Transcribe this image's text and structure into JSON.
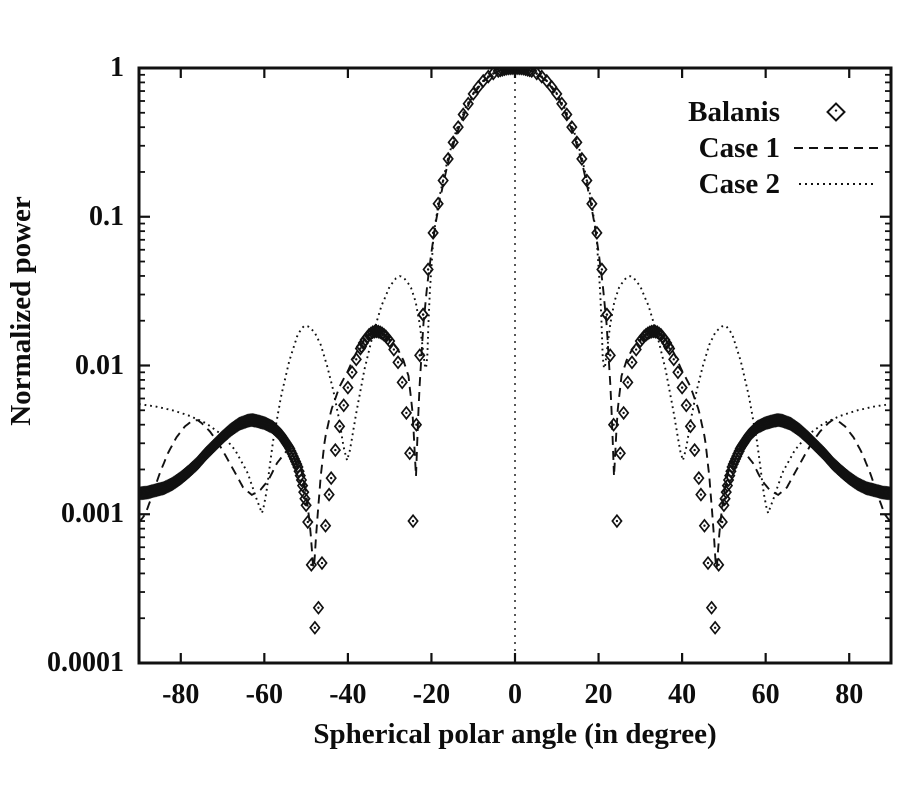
{
  "figure": {
    "background": "#ffffff",
    "ink_color": "#111111",
    "description": "Scanned log-scale antenna radiation pattern comparison plot"
  },
  "chart_data": {
    "type": "line",
    "title": "",
    "xlabel": "Spherical polar angle (in degree)",
    "ylabel": "Normalized power",
    "xlim": [
      -90,
      90
    ],
    "ylim": [
      0.0001,
      1
    ],
    "y_scale": "log",
    "grid": "vertical dotted line at x=0 only",
    "legend_position": "top-right inside plot",
    "x_ticks": [
      {
        "label": "-80",
        "value": -80
      },
      {
        "label": "-60",
        "value": -60
      },
      {
        "label": "-40",
        "value": -40
      },
      {
        "label": "-20",
        "value": -20
      },
      {
        "label": "0",
        "value": 0
      },
      {
        "label": "20",
        "value": 20
      },
      {
        "label": "40",
        "value": 40
      },
      {
        "label": "60",
        "value": 60
      },
      {
        "label": "80",
        "value": 80
      }
    ],
    "y_ticks": [
      {
        "label": "1",
        "value": 1
      },
      {
        "label": "0.1",
        "value": 0.1
      },
      {
        "label": "0.01",
        "value": 0.01
      },
      {
        "label": "0.001",
        "value": 0.001
      },
      {
        "label": "0.0001",
        "value": 0.0001
      }
    ],
    "legend": [
      {
        "label": "Balanis",
        "sample": "diamond-marker"
      },
      {
        "label": "Case 1",
        "sample": "dashed-line"
      },
      {
        "label": "Case 2",
        "sample": "dotted-line"
      }
    ],
    "series": [
      {
        "name": "Balanis",
        "type": "scatter",
        "marker": "open-diamond-with-center-dot",
        "symmetric": true,
        "marker_spacing": [
          [
            0,
            4,
            0.5
          ],
          [
            4,
            22,
            1.2
          ],
          [
            22,
            26,
            0.8
          ],
          [
            26,
            30,
            1.0
          ],
          [
            30,
            37,
            0.45
          ],
          [
            37,
            44.5,
            1.0
          ],
          [
            44.5,
            50,
            0.85
          ],
          [
            50,
            90.01,
            0.28
          ]
        ],
        "half_profile": [
          [
            0,
            1.0
          ],
          [
            2,
            0.99
          ],
          [
            4,
            0.955
          ],
          [
            6,
            0.895
          ],
          [
            8,
            0.8
          ],
          [
            10,
            0.67
          ],
          [
            12,
            0.52
          ],
          [
            14,
            0.375
          ],
          [
            16,
            0.245
          ],
          [
            18,
            0.14
          ],
          [
            19,
            0.1
          ],
          [
            20,
            0.066
          ],
          [
            21,
            0.04
          ],
          [
            22,
            0.022
          ],
          [
            23,
            0.01
          ],
          [
            23.6,
            0.004
          ],
          [
            24,
            0.0015
          ],
          [
            24.4,
            0.0009
          ],
          [
            25,
            0.0022
          ],
          [
            26,
            0.0048
          ],
          [
            27,
            0.0077
          ],
          [
            28,
            0.0105
          ],
          [
            29,
            0.0128
          ],
          [
            30,
            0.0146
          ],
          [
            31,
            0.0158
          ],
          [
            32,
            0.0166
          ],
          [
            33,
            0.017
          ],
          [
            34,
            0.0168
          ],
          [
            35,
            0.016
          ],
          [
            36,
            0.0147
          ],
          [
            37,
            0.013
          ],
          [
            38,
            0.011
          ],
          [
            39,
            0.009
          ],
          [
            40,
            0.0071
          ],
          [
            41,
            0.0054
          ],
          [
            42,
            0.0039
          ],
          [
            43,
            0.0027
          ],
          [
            44,
            0.00175
          ],
          [
            45,
            0.00105
          ],
          [
            46,
            0.00055
          ],
          [
            47,
            0.00025
          ],
          [
            47.6,
            0.00012
          ],
          [
            48.3,
            0.00028
          ],
          [
            49,
            0.0006
          ],
          [
            50,
            0.00115
          ],
          [
            51,
            0.00165
          ],
          [
            52,
            0.0021
          ],
          [
            54,
            0.0028
          ],
          [
            56,
            0.0034
          ],
          [
            58,
            0.00385
          ],
          [
            60,
            0.0041
          ],
          [
            62,
            0.00425
          ],
          [
            63,
            0.0043
          ],
          [
            64,
            0.00425
          ],
          [
            66,
            0.00405
          ],
          [
            68,
            0.0037
          ],
          [
            70,
            0.0033
          ],
          [
            72,
            0.0029
          ],
          [
            74,
            0.00255
          ],
          [
            76,
            0.0022
          ],
          [
            78,
            0.00195
          ],
          [
            80,
            0.00175
          ],
          [
            82,
            0.0016
          ],
          [
            84,
            0.0015
          ],
          [
            86,
            0.00145
          ],
          [
            88,
            0.0014
          ],
          [
            90,
            0.00138
          ]
        ]
      },
      {
        "name": "Case 1",
        "type": "line",
        "dash": [
          9,
          6
        ],
        "symmetric": true,
        "half_profile": [
          [
            0,
            1.0
          ],
          [
            2,
            0.985
          ],
          [
            4,
            0.95
          ],
          [
            6,
            0.885
          ],
          [
            8,
            0.79
          ],
          [
            10,
            0.66
          ],
          [
            12,
            0.5
          ],
          [
            14,
            0.36
          ],
          [
            16,
            0.235
          ],
          [
            18,
            0.13
          ],
          [
            19,
            0.09
          ],
          [
            20,
            0.058
          ],
          [
            21,
            0.035
          ],
          [
            22,
            0.018
          ],
          [
            23,
            0.006
          ],
          [
            23.7,
            0.0018
          ],
          [
            24.5,
            0.0048
          ],
          [
            25.5,
            0.0085
          ],
          [
            26.7,
            0.0108
          ],
          [
            28,
            0.0128
          ],
          [
            30,
            0.015
          ],
          [
            32,
            0.0163
          ],
          [
            33.5,
            0.0168
          ],
          [
            35,
            0.016
          ],
          [
            36,
            0.015
          ],
          [
            38,
            0.0122
          ],
          [
            40,
            0.0092
          ],
          [
            42,
            0.0072
          ],
          [
            44,
            0.005
          ],
          [
            45.5,
            0.0032
          ],
          [
            46.5,
            0.0018
          ],
          [
            47.5,
            0.0008
          ],
          [
            48.2,
            0.0004
          ],
          [
            49,
            0.0008
          ],
          [
            50,
            0.0014
          ],
          [
            51,
            0.0019
          ],
          [
            52.5,
            0.0025
          ],
          [
            53.5,
            0.0028
          ],
          [
            55,
            0.0026
          ],
          [
            57,
            0.0022
          ],
          [
            59,
            0.0017
          ],
          [
            61,
            0.00145
          ],
          [
            63,
            0.00135
          ],
          [
            65,
            0.0015
          ],
          [
            67,
            0.0019
          ],
          [
            69,
            0.0024
          ],
          [
            71,
            0.003
          ],
          [
            73,
            0.0036
          ],
          [
            75,
            0.0041
          ],
          [
            76,
            0.0043
          ],
          [
            77.5,
            0.0042
          ],
          [
            79,
            0.0039
          ],
          [
            81,
            0.0033
          ],
          [
            83,
            0.0026
          ],
          [
            85,
            0.0019
          ],
          [
            87,
            0.0013
          ],
          [
            88.5,
            0.001
          ],
          [
            90,
            0.00088
          ]
        ]
      },
      {
        "name": "Case 2",
        "type": "line",
        "dash": [
          1.8,
          3.8
        ],
        "symmetric": true,
        "half_profile": [
          [
            0,
            1.0
          ],
          [
            2,
            0.985
          ],
          [
            4,
            0.955
          ],
          [
            6,
            0.89
          ],
          [
            8,
            0.805
          ],
          [
            10,
            0.675
          ],
          [
            12,
            0.53
          ],
          [
            14,
            0.385
          ],
          [
            16,
            0.25
          ],
          [
            18,
            0.14
          ],
          [
            19.5,
            0.075
          ],
          [
            20.5,
            0.028
          ],
          [
            21,
            0.0115
          ],
          [
            21.4,
            0.009
          ],
          [
            22,
            0.0125
          ],
          [
            22.8,
            0.019
          ],
          [
            23.8,
            0.027
          ],
          [
            25,
            0.034
          ],
          [
            26.5,
            0.0385
          ],
          [
            27.5,
            0.04
          ],
          [
            28.5,
            0.0385
          ],
          [
            30,
            0.034
          ],
          [
            32,
            0.025
          ],
          [
            34,
            0.0162
          ],
          [
            36,
            0.0095
          ],
          [
            38,
            0.0048
          ],
          [
            39.5,
            0.0027
          ],
          [
            40.2,
            0.0023
          ],
          [
            41,
            0.0028
          ],
          [
            42,
            0.0042
          ],
          [
            43.5,
            0.0068
          ],
          [
            45,
            0.01
          ],
          [
            46.5,
            0.0138
          ],
          [
            48,
            0.0168
          ],
          [
            49.5,
            0.0183
          ],
          [
            50.5,
            0.0185
          ],
          [
            52,
            0.0162
          ],
          [
            54,
            0.0108
          ],
          [
            56,
            0.0062
          ],
          [
            58,
            0.003
          ],
          [
            59.5,
            0.0014
          ],
          [
            60.5,
            0.001
          ],
          [
            62,
            0.0013
          ],
          [
            64,
            0.0019
          ],
          [
            67,
            0.0027
          ],
          [
            70,
            0.0034
          ],
          [
            74,
            0.0041
          ],
          [
            78,
            0.0046
          ],
          [
            82,
            0.005
          ],
          [
            86,
            0.0053
          ],
          [
            90,
            0.0055
          ]
        ]
      }
    ]
  }
}
